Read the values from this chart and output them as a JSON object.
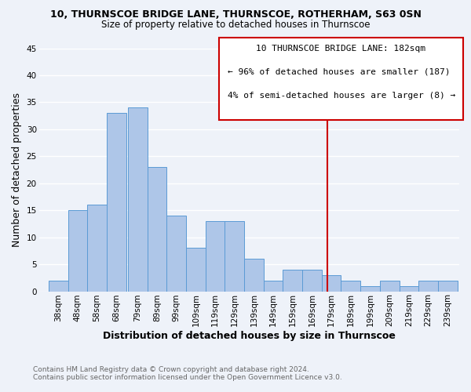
{
  "title1": "10, THURNSCOE BRIDGE LANE, THURNSCOE, ROTHERHAM, S63 0SN",
  "title2": "Size of property relative to detached houses in Thurnscoe",
  "xlabel": "Distribution of detached houses by size in Thurnscoe",
  "ylabel": "Number of detached properties",
  "bin_labels": [
    "38sqm",
    "48sqm",
    "58sqm",
    "68sqm",
    "79sqm",
    "89sqm",
    "99sqm",
    "109sqm",
    "119sqm",
    "129sqm",
    "139sqm",
    "149sqm",
    "159sqm",
    "169sqm",
    "179sqm",
    "189sqm",
    "199sqm",
    "209sqm",
    "219sqm",
    "229sqm",
    "239sqm"
  ],
  "bar_heights": [
    2,
    15,
    16,
    33,
    34,
    23,
    14,
    8,
    13,
    13,
    6,
    2,
    4,
    4,
    3,
    2,
    1,
    2,
    1,
    2,
    2
  ],
  "bar_color": "#aec6e8",
  "bar_edge_color": "#5b9bd5",
  "vline_x": 182,
  "vline_color": "#cc0000",
  "ylim": [
    0,
    45
  ],
  "bin_starts": [
    38,
    48,
    58,
    68,
    79,
    89,
    99,
    109,
    119,
    129,
    139,
    149,
    159,
    169,
    179,
    189,
    199,
    209,
    219,
    229,
    239
  ],
  "bin_width": 10,
  "annotation_title": "10 THURNSCOE BRIDGE LANE: 182sqm",
  "annotation_line1": "← 96% of detached houses are smaller (187)",
  "annotation_line2": "4% of semi-detached houses are larger (8) →",
  "footer1": "Contains HM Land Registry data © Crown copyright and database right 2024.",
  "footer2": "Contains public sector information licensed under the Open Government Licence v3.0.",
  "background_color": "#eef2f9",
  "grid_color": "#ffffff",
  "title_fontsize": 9,
  "subtitle_fontsize": 8.5,
  "axis_label_fontsize": 9,
  "tick_fontsize": 7.5,
  "annotation_fontsize": 8,
  "footer_fontsize": 6.5
}
